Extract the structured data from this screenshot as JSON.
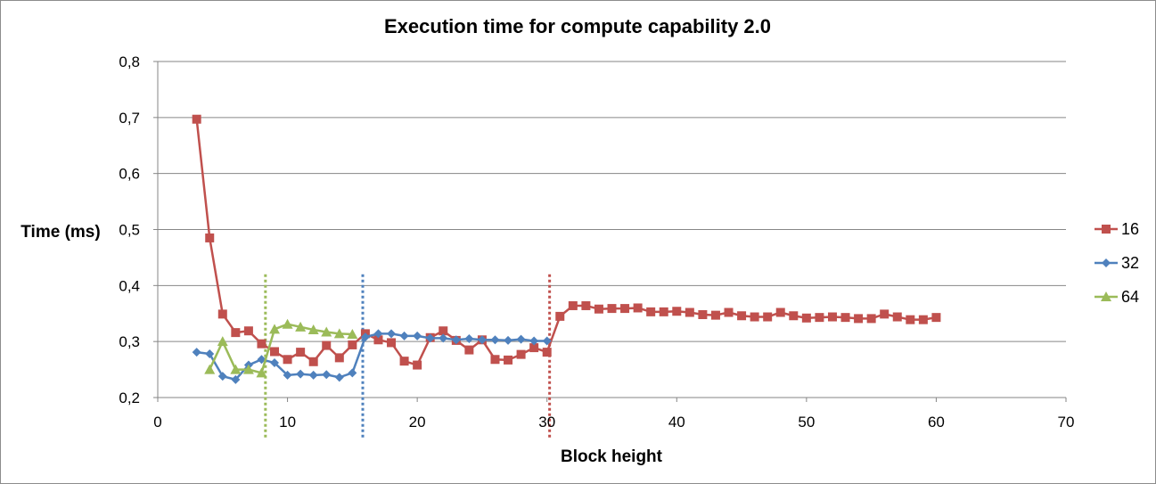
{
  "chart_data": {
    "type": "line",
    "title": "Execution time for compute capability 2.0",
    "xlabel": "Block height",
    "ylabel": "Time (ms)",
    "xlim": [
      0,
      70
    ],
    "ylim": [
      0.2,
      0.8
    ],
    "xticks": [
      "0",
      "10",
      "20",
      "30",
      "40",
      "50",
      "60",
      "70"
    ],
    "yticks": [
      "0,2",
      "0,3",
      "0,4",
      "0,5",
      "0,6",
      "0,7",
      "0,8"
    ],
    "grid": "horizontal",
    "legend_position": "right",
    "series": [
      {
        "name": "16",
        "color": "#c0504d",
        "marker": "square",
        "x": [
          3,
          4,
          5,
          6,
          7,
          8,
          9,
          10,
          11,
          12,
          13,
          14,
          15,
          16,
          17,
          18,
          19,
          20,
          21,
          22,
          23,
          24,
          25,
          26,
          27,
          28,
          29,
          30,
          31,
          32,
          33,
          34,
          35,
          36,
          37,
          38,
          39,
          40,
          41,
          42,
          43,
          44,
          45,
          46,
          47,
          48,
          49,
          50,
          51,
          52,
          53,
          54,
          55,
          56,
          57,
          58,
          59,
          60
        ],
        "y": [
          0.697,
          0.485,
          0.349,
          0.316,
          0.319,
          0.296,
          0.282,
          0.268,
          0.281,
          0.264,
          0.293,
          0.271,
          0.294,
          0.314,
          0.303,
          0.298,
          0.265,
          0.258,
          0.307,
          0.319,
          0.302,
          0.285,
          0.303,
          0.268,
          0.267,
          0.277,
          0.289,
          0.281,
          0.345,
          0.364,
          0.364,
          0.358,
          0.359,
          0.359,
          0.36,
          0.353,
          0.353,
          0.354,
          0.352,
          0.348,
          0.347,
          0.352,
          0.346,
          0.344,
          0.344,
          0.352,
          0.346,
          0.342,
          0.343,
          0.344,
          0.343,
          0.341,
          0.341,
          0.349,
          0.344,
          0.339,
          0.339,
          0.343
        ]
      },
      {
        "name": "32",
        "color": "#4f81bd",
        "marker": "diamond",
        "x": [
          3,
          4,
          5,
          6,
          7,
          8,
          9,
          10,
          11,
          12,
          13,
          14,
          15,
          16,
          17,
          18,
          19,
          20,
          21,
          22,
          23,
          24,
          25,
          26,
          27,
          28,
          29,
          30
        ],
        "y": [
          0.281,
          0.278,
          0.238,
          0.232,
          0.258,
          0.268,
          0.262,
          0.24,
          0.242,
          0.24,
          0.241,
          0.236,
          0.244,
          0.308,
          0.314,
          0.314,
          0.31,
          0.31,
          0.306,
          0.306,
          0.303,
          0.305,
          0.303,
          0.303,
          0.302,
          0.304,
          0.301,
          0.301
        ]
      },
      {
        "name": "64",
        "color": "#9bbb59",
        "marker": "triangle",
        "x": [
          4,
          5,
          6,
          7,
          8,
          9,
          10,
          11,
          12,
          13,
          14,
          15
        ],
        "y": [
          0.25,
          0.3,
          0.25,
          0.25,
          0.244,
          0.322,
          0.331,
          0.326,
          0.321,
          0.317,
          0.314,
          0.313
        ]
      }
    ],
    "reference_lines": [
      {
        "x": 8.3,
        "color": "#9bbb59",
        "style": "dotted"
      },
      {
        "x": 15.8,
        "color": "#4f81bd",
        "style": "dotted"
      },
      {
        "x": 30.2,
        "color": "#c0504d",
        "style": "dotted"
      }
    ]
  }
}
